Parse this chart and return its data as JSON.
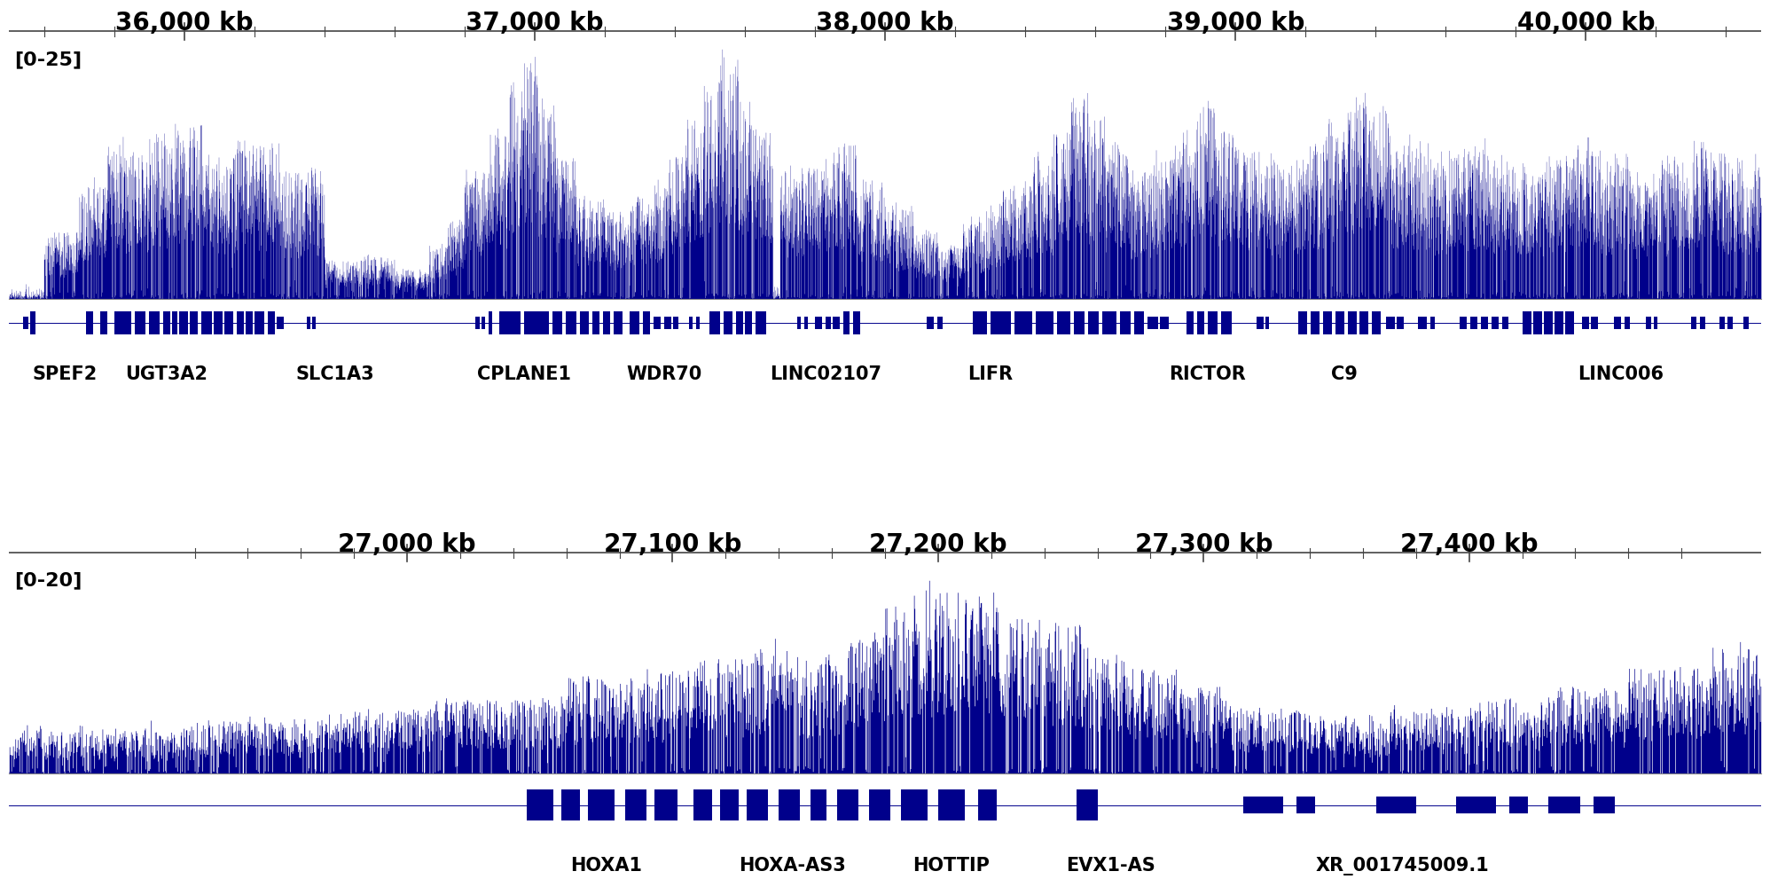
{
  "panel1": {
    "xmin": 35500,
    "xmax": 40500,
    "ymax": 25,
    "ylabel": "[0-25]",
    "xticks": [
      36000,
      37000,
      38000,
      39000,
      40000
    ],
    "xtick_labels": [
      "36,000 kb",
      "37,000 kb",
      "38,000 kb",
      "39,000 kb",
      "40,000 kb"
    ],
    "gene_names": [
      {
        "name": "SPEF2",
        "x": 35660
      },
      {
        "name": "UGT3A2",
        "x": 35950
      },
      {
        "name": "SLC1A3",
        "x": 36430
      },
      {
        "name": "CPLANE1",
        "x": 36970
      },
      {
        "name": "WDR70",
        "x": 37370
      },
      {
        "name": "LINC02107",
        "x": 37830
      },
      {
        "name": "LIFR",
        "x": 38300
      },
      {
        "name": "RICTOR",
        "x": 38920
      },
      {
        "name": "C9",
        "x": 39310
      },
      {
        "name": "LINC006",
        "x": 40100
      }
    ]
  },
  "panel2": {
    "xmin": 26850,
    "xmax": 27510,
    "ymax": 20,
    "ylabel": "[0-20]",
    "xticks": [
      27000,
      27100,
      27200,
      27300,
      27400
    ],
    "xtick_labels": [
      "27,000 kb",
      "27,100 kb",
      "27,200 kb",
      "27,300 kb",
      "27,400 kb"
    ],
    "gene_names": [
      {
        "name": "HOXA1",
        "x": 27075
      },
      {
        "name": "HOXA-AS3",
        "x": 27145
      },
      {
        "name": "HOTTIP",
        "x": 27205
      },
      {
        "name": "EVX1-AS",
        "x": 27265
      },
      {
        "name": "XR_001745009.1",
        "x": 27375
      }
    ]
  },
  "track_color": "#00008B",
  "gene_color": "#00008B",
  "bg_color": "#ffffff",
  "ruler_color": "#444444",
  "label_color": "#000000",
  "fontsize_axis": 20,
  "fontsize_range": 16,
  "fontsize_gene": 15
}
